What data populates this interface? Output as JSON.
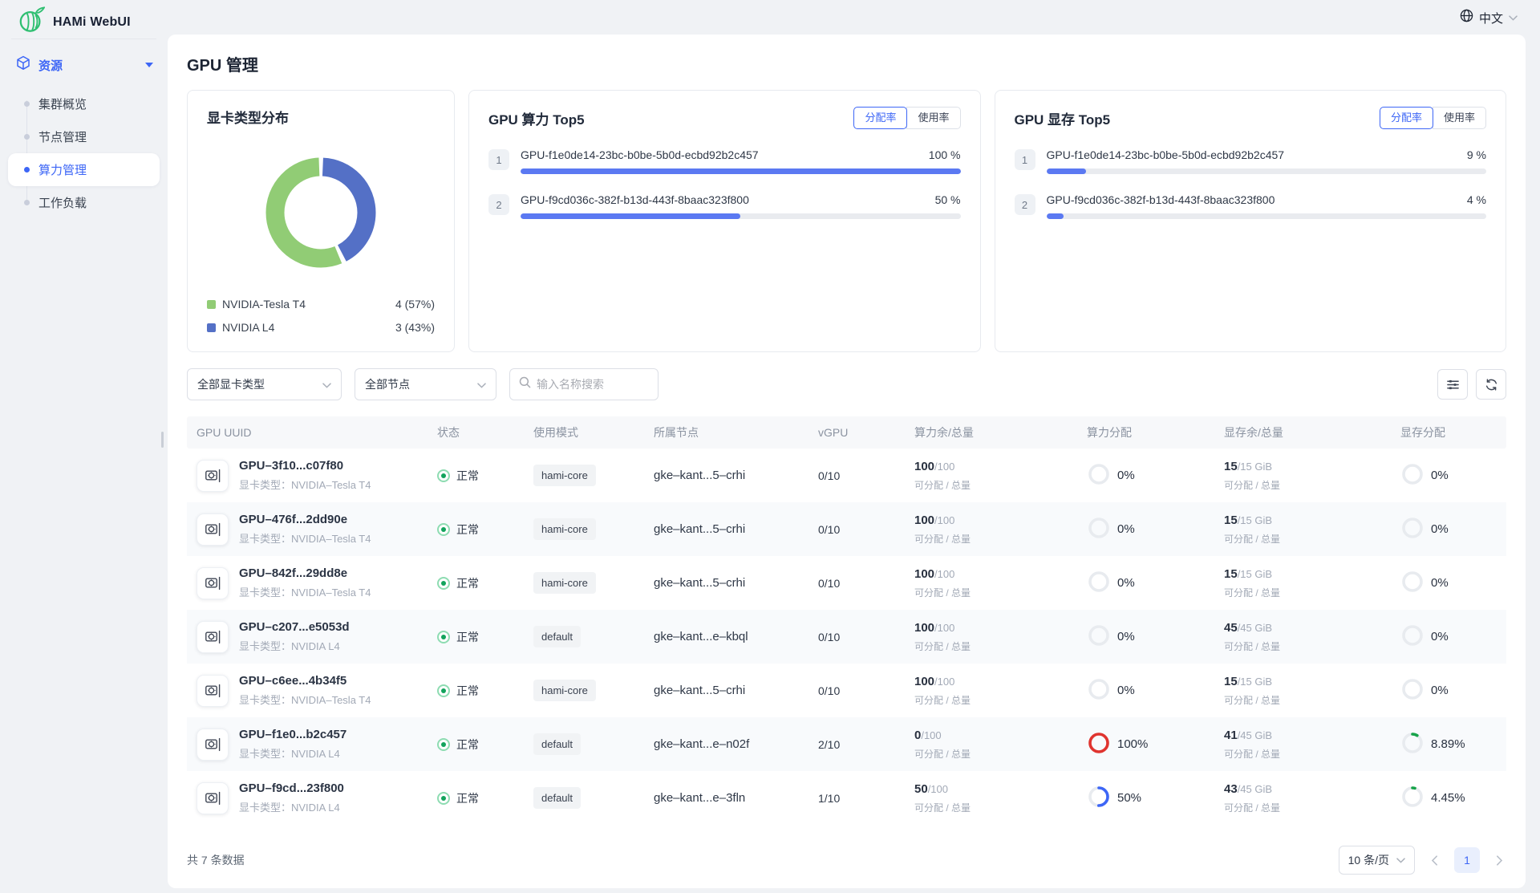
{
  "brand": {
    "name": "HAMi WebUI"
  },
  "topbar": {
    "language": "中文"
  },
  "sidebar": {
    "group": {
      "label": "资源"
    },
    "items": [
      {
        "label": "集群概览",
        "active": false
      },
      {
        "label": "节点管理",
        "active": false
      },
      {
        "label": "算力管理",
        "active": true
      },
      {
        "label": "工作负载",
        "active": false
      }
    ]
  },
  "page": {
    "title": "GPU 管理"
  },
  "colors": {
    "primary": "#3d66f6",
    "bar_blue": "#5b79f2",
    "donut_green": "#91cc75",
    "donut_blue": "#5470c6",
    "ring_red": "#e0342f",
    "ring_blue": "#3d66f6",
    "ring_green": "#17a34a",
    "ring_track": "#e8ebef"
  },
  "chart_data": [
    {
      "type": "pie",
      "title": "显卡类型分布",
      "donut": true,
      "labels": [
        "NVIDIA-Tesla T4",
        "NVIDIA L4"
      ],
      "values": [
        4,
        3
      ],
      "percents": [
        57,
        43
      ],
      "colors": [
        "#91cc75",
        "#5470c6"
      ],
      "legend_position": "bottom"
    },
    {
      "type": "bar",
      "title": "GPU 算力 Top5",
      "categories": [
        "GPU-f1e0de14-23bc-b0be-5b0d-ecbd92b2c457",
        "GPU-f9cd036c-382f-b13d-443f-8baac323f800"
      ],
      "values": [
        100,
        50
      ],
      "unit": "%",
      "xlim": [
        0,
        100
      ]
    },
    {
      "type": "bar",
      "title": "GPU 显存 Top5",
      "categories": [
        "GPU-f1e0de14-23bc-b0be-5b0d-ecbd92b2c457",
        "GPU-f9cd036c-382f-b13d-443f-8baac323f800"
      ],
      "values": [
        9,
        4
      ],
      "unit": "%",
      "xlim": [
        0,
        100
      ]
    }
  ],
  "cards": {
    "type_dist": {
      "title": "显卡类型分布",
      "legend": [
        {
          "label": "NVIDIA-Tesla T4",
          "value": "4 (57%)",
          "color": "#91cc75",
          "percent": 57
        },
        {
          "label": "NVIDIA L4",
          "value": "3 (43%)",
          "color": "#5470c6",
          "percent": 43
        }
      ]
    },
    "compute_top5": {
      "title": "GPU 算力 Top5",
      "toggle": [
        "分配率",
        "使用率"
      ],
      "selected_toggle": "分配率",
      "rows": [
        {
          "rank": "1",
          "uuid": "GPU-f1e0de14-23bc-b0be-5b0d-ecbd92b2c457",
          "percent_label": "100 %",
          "value": 100
        },
        {
          "rank": "2",
          "uuid": "GPU-f9cd036c-382f-b13d-443f-8baac323f800",
          "percent_label": "50 %",
          "value": 50
        }
      ]
    },
    "memory_top5": {
      "title": "GPU 显存 Top5",
      "toggle": [
        "分配率",
        "使用率"
      ],
      "selected_toggle": "分配率",
      "rows": [
        {
          "rank": "1",
          "uuid": "GPU-f1e0de14-23bc-b0be-5b0d-ecbd92b2c457",
          "percent_label": "9 %",
          "value": 9
        },
        {
          "rank": "2",
          "uuid": "GPU-f9cd036c-382f-b13d-443f-8baac323f800",
          "percent_label": "4 %",
          "value": 4
        }
      ]
    }
  },
  "filters": {
    "gpu_type": "全部显卡类型",
    "node": "全部节点",
    "search_placeholder": "输入名称搜索"
  },
  "table": {
    "columns": [
      "GPU UUID",
      "状态",
      "使用模式",
      "所属节点",
      "vGPU",
      "算力余/总量",
      "算力分配",
      "显存余/总量",
      "显存分配"
    ],
    "sub_label": "可分配 / 总量",
    "rows": [
      {
        "uuid": "GPU–3f10...c07f80",
        "type_label": "显卡类型：NVIDIA–Tesla T4",
        "status": "正常",
        "mode": "hami-core",
        "node": "gke–kant...5–crhi",
        "vgpu": "0/10",
        "core": {
          "remaining": "100",
          "total": "/100"
        },
        "core_alloc": {
          "value": 0,
          "label": "0%",
          "color": "#3d66f6"
        },
        "mem": {
          "remaining": "15",
          "total": "/15 GiB"
        },
        "mem_alloc": {
          "value": 0,
          "label": "0%",
          "color": "#17a34a"
        }
      },
      {
        "uuid": "GPU–476f...2dd90e",
        "type_label": "显卡类型：NVIDIA–Tesla T4",
        "status": "正常",
        "mode": "hami-core",
        "node": "gke–kant...5–crhi",
        "vgpu": "0/10",
        "core": {
          "remaining": "100",
          "total": "/100"
        },
        "core_alloc": {
          "value": 0,
          "label": "0%",
          "color": "#3d66f6"
        },
        "mem": {
          "remaining": "15",
          "total": "/15 GiB"
        },
        "mem_alloc": {
          "value": 0,
          "label": "0%",
          "color": "#17a34a"
        }
      },
      {
        "uuid": "GPU–842f...29dd8e",
        "type_label": "显卡类型：NVIDIA–Tesla T4",
        "status": "正常",
        "mode": "hami-core",
        "node": "gke–kant...5–crhi",
        "vgpu": "0/10",
        "core": {
          "remaining": "100",
          "total": "/100"
        },
        "core_alloc": {
          "value": 0,
          "label": "0%",
          "color": "#3d66f6"
        },
        "mem": {
          "remaining": "15",
          "total": "/15 GiB"
        },
        "mem_alloc": {
          "value": 0,
          "label": "0%",
          "color": "#17a34a"
        }
      },
      {
        "uuid": "GPU–c207...e5053d",
        "type_label": "显卡类型：NVIDIA L4",
        "status": "正常",
        "mode": "default",
        "node": "gke–kant...e–kbql",
        "vgpu": "0/10",
        "core": {
          "remaining": "100",
          "total": "/100"
        },
        "core_alloc": {
          "value": 0,
          "label": "0%",
          "color": "#3d66f6"
        },
        "mem": {
          "remaining": "45",
          "total": "/45 GiB"
        },
        "mem_alloc": {
          "value": 0,
          "label": "0%",
          "color": "#17a34a"
        }
      },
      {
        "uuid": "GPU–c6ee...4b34f5",
        "type_label": "显卡类型：NVIDIA–Tesla T4",
        "status": "正常",
        "mode": "hami-core",
        "node": "gke–kant...5–crhi",
        "vgpu": "0/10",
        "core": {
          "remaining": "100",
          "total": "/100"
        },
        "core_alloc": {
          "value": 0,
          "label": "0%",
          "color": "#3d66f6"
        },
        "mem": {
          "remaining": "15",
          "total": "/15 GiB"
        },
        "mem_alloc": {
          "value": 0,
          "label": "0%",
          "color": "#17a34a"
        }
      },
      {
        "uuid": "GPU–f1e0...b2c457",
        "type_label": "显卡类型：NVIDIA L4",
        "status": "正常",
        "mode": "default",
        "node": "gke–kant...e–n02f",
        "vgpu": "2/10",
        "core": {
          "remaining": "0",
          "total": "/100"
        },
        "core_alloc": {
          "value": 100,
          "label": "100%",
          "color": "#e0342f"
        },
        "mem": {
          "remaining": "41",
          "total": "/45 GiB"
        },
        "mem_alloc": {
          "value": 8.89,
          "label": "8.89%",
          "color": "#17a34a"
        }
      },
      {
        "uuid": "GPU–f9cd...23f800",
        "type_label": "显卡类型：NVIDIA L4",
        "status": "正常",
        "mode": "default",
        "node": "gke–kant...e–3fln",
        "vgpu": "1/10",
        "core": {
          "remaining": "50",
          "total": "/100"
        },
        "core_alloc": {
          "value": 50,
          "label": "50%",
          "color": "#3d66f6"
        },
        "mem": {
          "remaining": "43",
          "total": "/45 GiB"
        },
        "mem_alloc": {
          "value": 4.45,
          "label": "4.45%",
          "color": "#17a34a"
        }
      }
    ]
  },
  "footer": {
    "total": "共 7 条数据",
    "page_size": "10 条/页",
    "page": "1"
  }
}
